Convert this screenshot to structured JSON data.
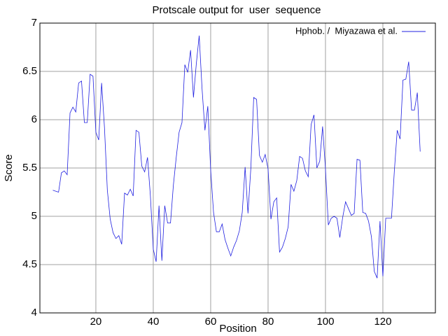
{
  "chart_data": {
    "type": "line",
    "title": "Protscale output for  user  sequence",
    "xlabel": "Position",
    "ylabel": "Score",
    "xlim": [
      0.5,
      138.3
    ],
    "ylim": [
      4,
      7
    ],
    "xticks": [
      20,
      40,
      60,
      80,
      100,
      120
    ],
    "yticks": [
      4,
      4.5,
      5,
      5.5,
      6,
      6.5,
      7
    ],
    "grid": true,
    "legend": "upper right",
    "x": [
      5,
      6,
      7,
      8,
      9,
      10,
      11,
      12,
      13,
      14,
      15,
      16,
      17,
      18,
      19,
      20,
      21,
      22,
      23,
      24,
      25,
      26,
      27,
      28,
      29,
      30,
      31,
      32,
      33,
      34,
      35,
      36,
      37,
      38,
      39,
      40,
      41,
      42,
      43,
      44,
      45,
      46,
      47,
      48,
      49,
      50,
      51,
      52,
      53,
      54,
      55,
      56,
      57,
      58,
      59,
      60,
      61,
      62,
      63,
      64,
      65,
      66,
      67,
      68,
      69,
      70,
      71,
      72,
      73,
      74,
      75,
      76,
      77,
      78,
      79,
      80,
      81,
      82,
      83,
      84,
      85,
      86,
      87,
      88,
      89,
      90,
      91,
      92,
      93,
      94,
      95,
      96,
      97,
      98,
      99,
      100,
      101,
      102,
      103,
      104,
      105,
      106,
      107,
      108,
      109,
      110,
      111,
      112,
      113,
      114,
      115,
      116,
      117,
      118,
      119,
      120,
      121,
      122,
      123,
      124,
      125,
      126,
      127,
      128,
      129,
      130,
      131,
      132,
      133
    ],
    "series": [
      {
        "name": "Hphob. /  Miyazawa et al.",
        "color": "#2020e0",
        "values": [
          5.27,
          5.26,
          5.25,
          5.45,
          5.47,
          5.43,
          6.07,
          6.13,
          6.08,
          6.38,
          6.4,
          5.97,
          5.97,
          6.47,
          6.45,
          5.87,
          5.79,
          6.38,
          5.92,
          5.27,
          4.97,
          4.83,
          4.77,
          4.8,
          4.71,
          5.24,
          5.22,
          5.28,
          5.21,
          5.89,
          5.87,
          5.52,
          5.46,
          5.61,
          5.21,
          4.66,
          4.53,
          5.11,
          4.54,
          5.11,
          4.93,
          4.93,
          5.32,
          5.61,
          5.87,
          5.97,
          6.57,
          6.49,
          6.72,
          6.23,
          6.58,
          6.87,
          6.32,
          5.89,
          6.14,
          5.48,
          5.04,
          4.84,
          4.84,
          4.92,
          4.76,
          4.67,
          4.59,
          4.68,
          4.75,
          4.85,
          5.04,
          5.51,
          5.03,
          5.5,
          6.23,
          6.21,
          5.63,
          5.56,
          5.64,
          5.49,
          4.97,
          5.15,
          5.19,
          4.63,
          4.68,
          4.77,
          4.89,
          5.33,
          5.26,
          5.37,
          5.62,
          5.6,
          5.47,
          5.41,
          5.95,
          6.05,
          5.5,
          5.57,
          5.93,
          5.49,
          4.91,
          4.98,
          5.0,
          4.98,
          4.78,
          4.99,
          5.15,
          5.08,
          5.01,
          5.03,
          5.59,
          5.58,
          5.04,
          5.03,
          4.95,
          4.79,
          4.43,
          4.36,
          4.95,
          4.38,
          4.98,
          4.98,
          4.98,
          5.47,
          5.89,
          5.8,
          6.41,
          6.42,
          6.6,
          6.1,
          6.1,
          6.28,
          5.67
        ]
      }
    ]
  }
}
